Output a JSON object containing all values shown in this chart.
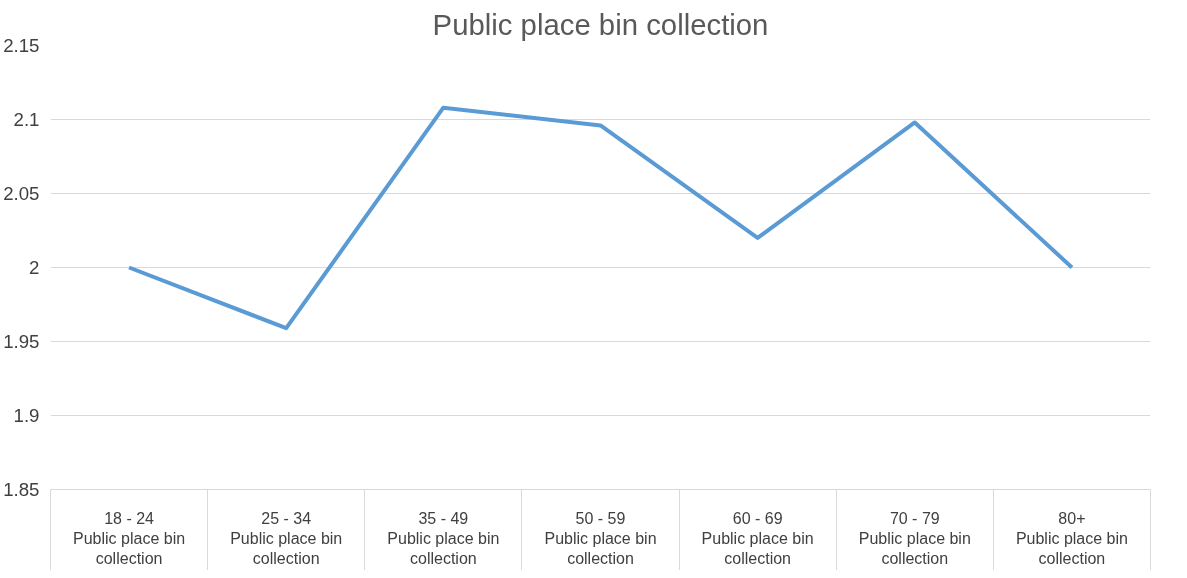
{
  "chart_data": {
    "type": "line",
    "title": "Public place bin collection",
    "categories": [
      "18 - 24\nPublic place bin collection",
      "25 - 34\nPublic place bin collection",
      "35 - 49\nPublic place bin collection",
      "50 - 59\nPublic place bin collection",
      "60 - 69\nPublic place bin collection",
      "70 - 79\nPublic place bin collection",
      "80+\nPublic place bin collection"
    ],
    "series": [
      {
        "color": "#5b9bd5",
        "values": [
          2.0,
          1.959,
          2.108,
          2.096,
          2.02,
          2.098,
          2.0
        ]
      }
    ],
    "ylim": [
      1.85,
      2.15
    ],
    "yticks": [
      1.85,
      1.9,
      1.95,
      2,
      2.05,
      2.1,
      2.15
    ],
    "grid": "y",
    "marker": "none",
    "line_style": "solid"
  }
}
